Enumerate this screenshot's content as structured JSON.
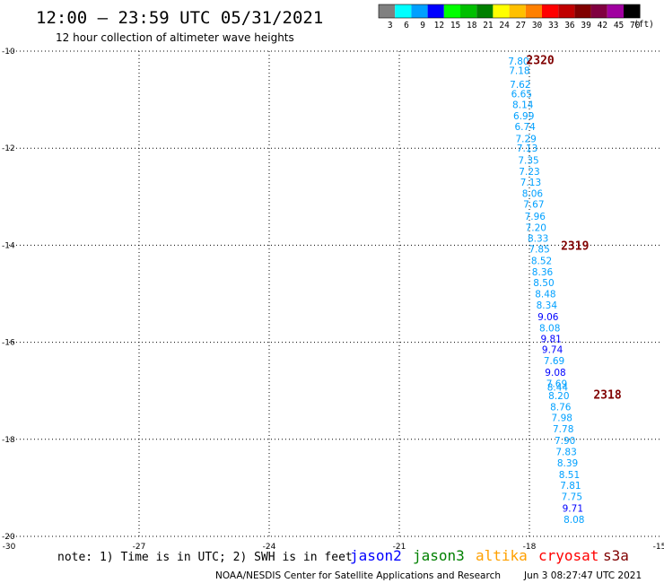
{
  "header": {
    "title": "12:00 – 23:59 UTC 05/31/2021",
    "subtitle": "12 hour collection of altimeter wave heights"
  },
  "color_scale": {
    "labels": [
      "3",
      "6",
      "9",
      "12",
      "15",
      "18",
      "21",
      "24",
      "27",
      "30",
      "33",
      "36",
      "39",
      "42",
      "45",
      "70"
    ],
    "unit": "(ft)",
    "colors": [
      "#808080",
      "#00ffff",
      "#00a0ff",
      "#0000ff",
      "#00ff00",
      "#00c000",
      "#008000",
      "#ffff00",
      "#ffc000",
      "#ff8000",
      "#ff0000",
      "#c00000",
      "#800000",
      "#800040",
      "#a000a0",
      "#000000"
    ]
  },
  "footer": {
    "note": "note: 1) Time is in UTC; 2) SWH is in feet",
    "satellites": [
      {
        "name": "jason2",
        "color": "#0000ff"
      },
      {
        "name": "jason3",
        "color": "#008000"
      },
      {
        "name": "altika",
        "color": "#ffa000"
      },
      {
        "name": "cryosat",
        "color": "#ff0000"
      },
      {
        "name": "s3a",
        "color": "#800000"
      }
    ],
    "credit": "NOAA/NESDIS Center for Satellite Applications and Research",
    "timestamp": "Jun  3 08:27:47 UTC 2021"
  },
  "chart_data": {
    "type": "scatter",
    "title": "12:00 – 23:59 UTC 05/31/2021",
    "xlim": [
      -30,
      -15
    ],
    "ylim": [
      -20,
      -10
    ],
    "x_ticks": [
      "-30",
      "-27",
      "-24",
      "-21",
      "-18",
      "-15"
    ],
    "x_tick_values": [
      -30,
      -27,
      -24,
      -21,
      -18,
      -15
    ],
    "y_ticks": [
      "-10",
      "-12",
      "-14",
      "-16",
      "-18",
      "-20"
    ],
    "y_tick_values": [
      -10,
      -12,
      -14,
      -16,
      -18,
      -20
    ],
    "grid": true,
    "colors": {
      "light": "#00a0ff",
      "dark": "#0000ff",
      "pass": "#800000"
    },
    "passes": [
      {
        "label": "2320",
        "x": -17.75,
        "y": -10.18
      },
      {
        "label": "2319",
        "x": -16.95,
        "y": -14.0
      },
      {
        "label": "2318",
        "x": -16.2,
        "y": -17.07
      }
    ],
    "points": [
      {
        "x": -18.25,
        "y": -10.2,
        "v": "7.80",
        "c": "light"
      },
      {
        "x": -18.23,
        "y": -10.4,
        "v": "7.18",
        "c": "light"
      },
      {
        "x": -18.21,
        "y": -10.68,
        "v": "7.62",
        "c": "light"
      },
      {
        "x": -18.18,
        "y": -10.88,
        "v": "6.65",
        "c": "light"
      },
      {
        "x": -18.15,
        "y": -11.1,
        "v": "8.14",
        "c": "light"
      },
      {
        "x": -18.13,
        "y": -11.33,
        "v": "6.99",
        "c": "light"
      },
      {
        "x": -18.1,
        "y": -11.55,
        "v": "6.74",
        "c": "light"
      },
      {
        "x": -18.08,
        "y": -11.8,
        "v": "7.29",
        "c": "light"
      },
      {
        "x": -18.05,
        "y": -12.0,
        "v": "7.13",
        "c": "light"
      },
      {
        "x": -18.02,
        "y": -12.25,
        "v": "7.35",
        "c": "light"
      },
      {
        "x": -18.0,
        "y": -12.48,
        "v": "7.23",
        "c": "light"
      },
      {
        "x": -17.97,
        "y": -12.7,
        "v": "7.13",
        "c": "light"
      },
      {
        "x": -17.93,
        "y": -12.93,
        "v": "8.06",
        "c": "light"
      },
      {
        "x": -17.9,
        "y": -13.15,
        "v": "7.67",
        "c": "light"
      },
      {
        "x": -17.87,
        "y": -13.4,
        "v": "7.96",
        "c": "light"
      },
      {
        "x": -17.85,
        "y": -13.63,
        "v": "7.20",
        "c": "light"
      },
      {
        "x": -17.8,
        "y": -13.85,
        "v": "8.33",
        "c": "light"
      },
      {
        "x": -17.77,
        "y": -14.08,
        "v": "7.85",
        "c": "light"
      },
      {
        "x": -17.72,
        "y": -14.32,
        "v": "8.52",
        "c": "light"
      },
      {
        "x": -17.7,
        "y": -14.55,
        "v": "8.36",
        "c": "light"
      },
      {
        "x": -17.67,
        "y": -14.77,
        "v": "8.50",
        "c": "light"
      },
      {
        "x": -17.63,
        "y": -15.0,
        "v": "8.48",
        "c": "light"
      },
      {
        "x": -17.6,
        "y": -15.23,
        "v": "8.34",
        "c": "light"
      },
      {
        "x": -17.57,
        "y": -15.47,
        "v": "9.06",
        "c": "dark"
      },
      {
        "x": -17.53,
        "y": -15.7,
        "v": "8.08",
        "c": "light"
      },
      {
        "x": -17.5,
        "y": -15.92,
        "v": "9.81",
        "c": "dark"
      },
      {
        "x": -17.47,
        "y": -16.15,
        "v": "9.74",
        "c": "dark"
      },
      {
        "x": -17.43,
        "y": -16.38,
        "v": "7.69",
        "c": "light"
      },
      {
        "x": -17.4,
        "y": -16.62,
        "v": "9.08",
        "c": "dark"
      },
      {
        "x": -17.37,
        "y": -16.85,
        "v": "7.69",
        "c": "light"
      },
      {
        "x": -17.35,
        "y": -16.92,
        "v": "8.44",
        "c": "light"
      },
      {
        "x": -17.32,
        "y": -17.1,
        "v": "8.20",
        "c": "light"
      },
      {
        "x": -17.28,
        "y": -17.33,
        "v": "8.76",
        "c": "light"
      },
      {
        "x": -17.25,
        "y": -17.55,
        "v": "7.98",
        "c": "light"
      },
      {
        "x": -17.22,
        "y": -17.78,
        "v": "7.78",
        "c": "light"
      },
      {
        "x": -17.18,
        "y": -18.02,
        "v": "7.90",
        "c": "light"
      },
      {
        "x": -17.15,
        "y": -18.25,
        "v": "7.83",
        "c": "light"
      },
      {
        "x": -17.12,
        "y": -18.48,
        "v": "8.39",
        "c": "light"
      },
      {
        "x": -17.08,
        "y": -18.72,
        "v": "8.51",
        "c": "light"
      },
      {
        "x": -17.05,
        "y": -18.95,
        "v": "7.81",
        "c": "light"
      },
      {
        "x": -17.02,
        "y": -19.18,
        "v": "7.75",
        "c": "light"
      },
      {
        "x": -17.0,
        "y": -19.42,
        "v": "9.71",
        "c": "dark"
      },
      {
        "x": -16.97,
        "y": -19.65,
        "v": "8.08",
        "c": "light"
      }
    ]
  }
}
